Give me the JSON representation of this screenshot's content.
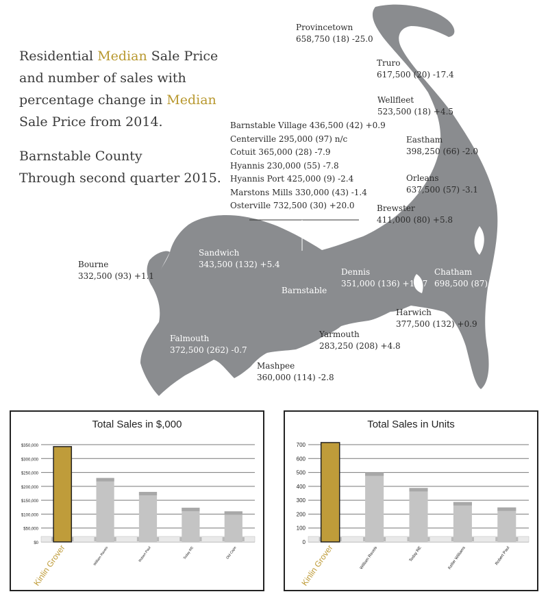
{
  "intro": {
    "line1_a": "Residential ",
    "line1_gold": "Median",
    "line1_b": " Sale Price and number of sales with percentage change in ",
    "line2_gold": "Median",
    "line2_b": " Sale Price from 2014."
  },
  "county": {
    "name": "Barnstable County",
    "period": "Through second quarter 2015."
  },
  "towns": {
    "provincetown": {
      "name": "Provincetown",
      "stats": "658,750 (18) -25.0"
    },
    "truro": {
      "name": "Truro",
      "stats": "617,500 (20) -17.4"
    },
    "wellfleet": {
      "name": "Wellfleet",
      "stats": "523,500 (18) +4.5"
    },
    "eastham": {
      "name": "Eastham",
      "stats": "398,250 (66) -2.0"
    },
    "orleans": {
      "name": "Orleans",
      "stats": "637,500 (57) -3.1"
    },
    "brewster": {
      "name": "Brewster",
      "stats": "411,000 (80) +5.8"
    },
    "chatham": {
      "name": "Chatham",
      "stats": "698,500 (87) +5.9"
    },
    "harwich": {
      "name": "Harwich",
      "stats": "377,500 (132) +0.9"
    },
    "dennis": {
      "name": "Dennis",
      "stats": "351,000 (136) +13.7"
    },
    "yarmouth": {
      "name": "Yarmouth",
      "stats": "283,250 (208) +4.8"
    },
    "mashpee": {
      "name": "Mashpee",
      "stats": "360,000 (114)  -2.8"
    },
    "falmouth": {
      "name": "Falmouth",
      "stats": "372,500 (262) -0.7"
    },
    "sandwich": {
      "name": "Sandwich",
      "stats": "343,500 (132)  +5.4"
    },
    "bourne": {
      "name": "Bourne",
      "stats": "332,500 (93)  +1.1"
    },
    "barnstable": {
      "name": "Barnstable"
    }
  },
  "villages": [
    "Barnstable Village 436,500 (42) +0.9",
    "Centerville  295,000 (97) n/c",
    "Cotuit  365,000 (28) -7.9",
    "Hyannis  230,000 (55) -7.8",
    "Hyannis Port  425,000 (9) -2.4",
    "Marstons Mills  330,000 (43) -1.4",
    "Osterville  732,500 (30) +20.0"
  ],
  "colors": {
    "land": "#8a8c8f",
    "gold_text": "#b8982f",
    "bar_highlight": "#bf9c3a",
    "bar_gray": "#c4c4c4",
    "bar_cap": "#a8a8a8"
  },
  "chart_data": [
    {
      "type": "bar",
      "title": "Total Sales in $,000",
      "categories": [
        "Kinlin Grover",
        "William Raveis",
        "Robert Paul",
        "Today RE",
        "Old Cape"
      ],
      "values": [
        343000,
        230000,
        180000,
        123000,
        110000
      ],
      "ylim": [
        0,
        350000
      ],
      "yticks": [
        0,
        50000,
        100000,
        150000,
        200000,
        250000,
        300000,
        350000
      ],
      "ytick_labels": [
        "$0",
        "$50,000",
        "$100,000",
        "$150,000",
        "$200,000",
        "$250,000",
        "$300,000",
        "$350,000"
      ],
      "grid": true,
      "highlight_index": 0
    },
    {
      "type": "bar",
      "title": "Total Sales in Units",
      "categories": [
        "Kinlin Grover",
        "William Raveis",
        "Today RE",
        "Keller Williams",
        "Robert Paul"
      ],
      "values": [
        715,
        500,
        388,
        287,
        248
      ],
      "ylim": [
        0,
        700
      ],
      "yticks": [
        0,
        100,
        200,
        300,
        400,
        500,
        600,
        700
      ],
      "ytick_labels": [
        "0",
        "100",
        "200",
        "300",
        "400",
        "500",
        "600",
        "700"
      ],
      "grid": true,
      "highlight_index": 0
    }
  ]
}
